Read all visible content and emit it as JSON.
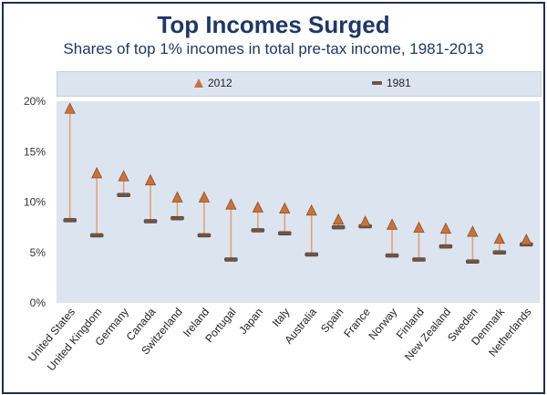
{
  "title": "Top Incomes Surged",
  "subtitle": "Shares of top 1% incomes in total pre-tax income, 1981-2013",
  "colors": {
    "title": "#1f3864",
    "marker_2012": "#c8733d",
    "marker_1981": "#6e5545",
    "connector": "#e0a27a",
    "plot_bg": "#dce4f0",
    "legend_bg": "#dce4f0"
  },
  "chart_data": {
    "type": "dot",
    "title": "Top Incomes Surged",
    "subtitle": "Shares of top 1% incomes in total pre-tax income, 1981-2013",
    "xlabel": "",
    "ylabel": "",
    "ylim": [
      0,
      20
    ],
    "yticks": [
      0,
      5,
      10,
      15,
      20
    ],
    "ytick_labels": [
      "0%",
      "5%",
      "10%",
      "15%",
      "20%"
    ],
    "grid": false,
    "legend_position": "top",
    "categories": [
      "United States",
      "United Kingdom",
      "Germany",
      "Canada",
      "Switzerland",
      "Ireland",
      "Portugal",
      "Japan",
      "Italy",
      "Australia",
      "Spain",
      "France",
      "Norway",
      "Finland",
      "New Zealand",
      "Sweden",
      "Denmark",
      "Netherlands"
    ],
    "series": [
      {
        "name": "2012",
        "marker": "triangle",
        "values": [
          19.3,
          12.9,
          12.6,
          12.2,
          10.5,
          10.5,
          9.8,
          9.5,
          9.4,
          9.2,
          8.3,
          8.1,
          7.8,
          7.5,
          7.4,
          7.1,
          6.4,
          6.3
        ]
      },
      {
        "name": "1981",
        "marker": "bar",
        "values": [
          8.2,
          6.7,
          10.7,
          8.1,
          8.4,
          6.7,
          4.3,
          7.2,
          6.9,
          4.8,
          7.5,
          7.6,
          4.7,
          4.3,
          5.6,
          4.1,
          5.0,
          5.8
        ]
      }
    ]
  }
}
